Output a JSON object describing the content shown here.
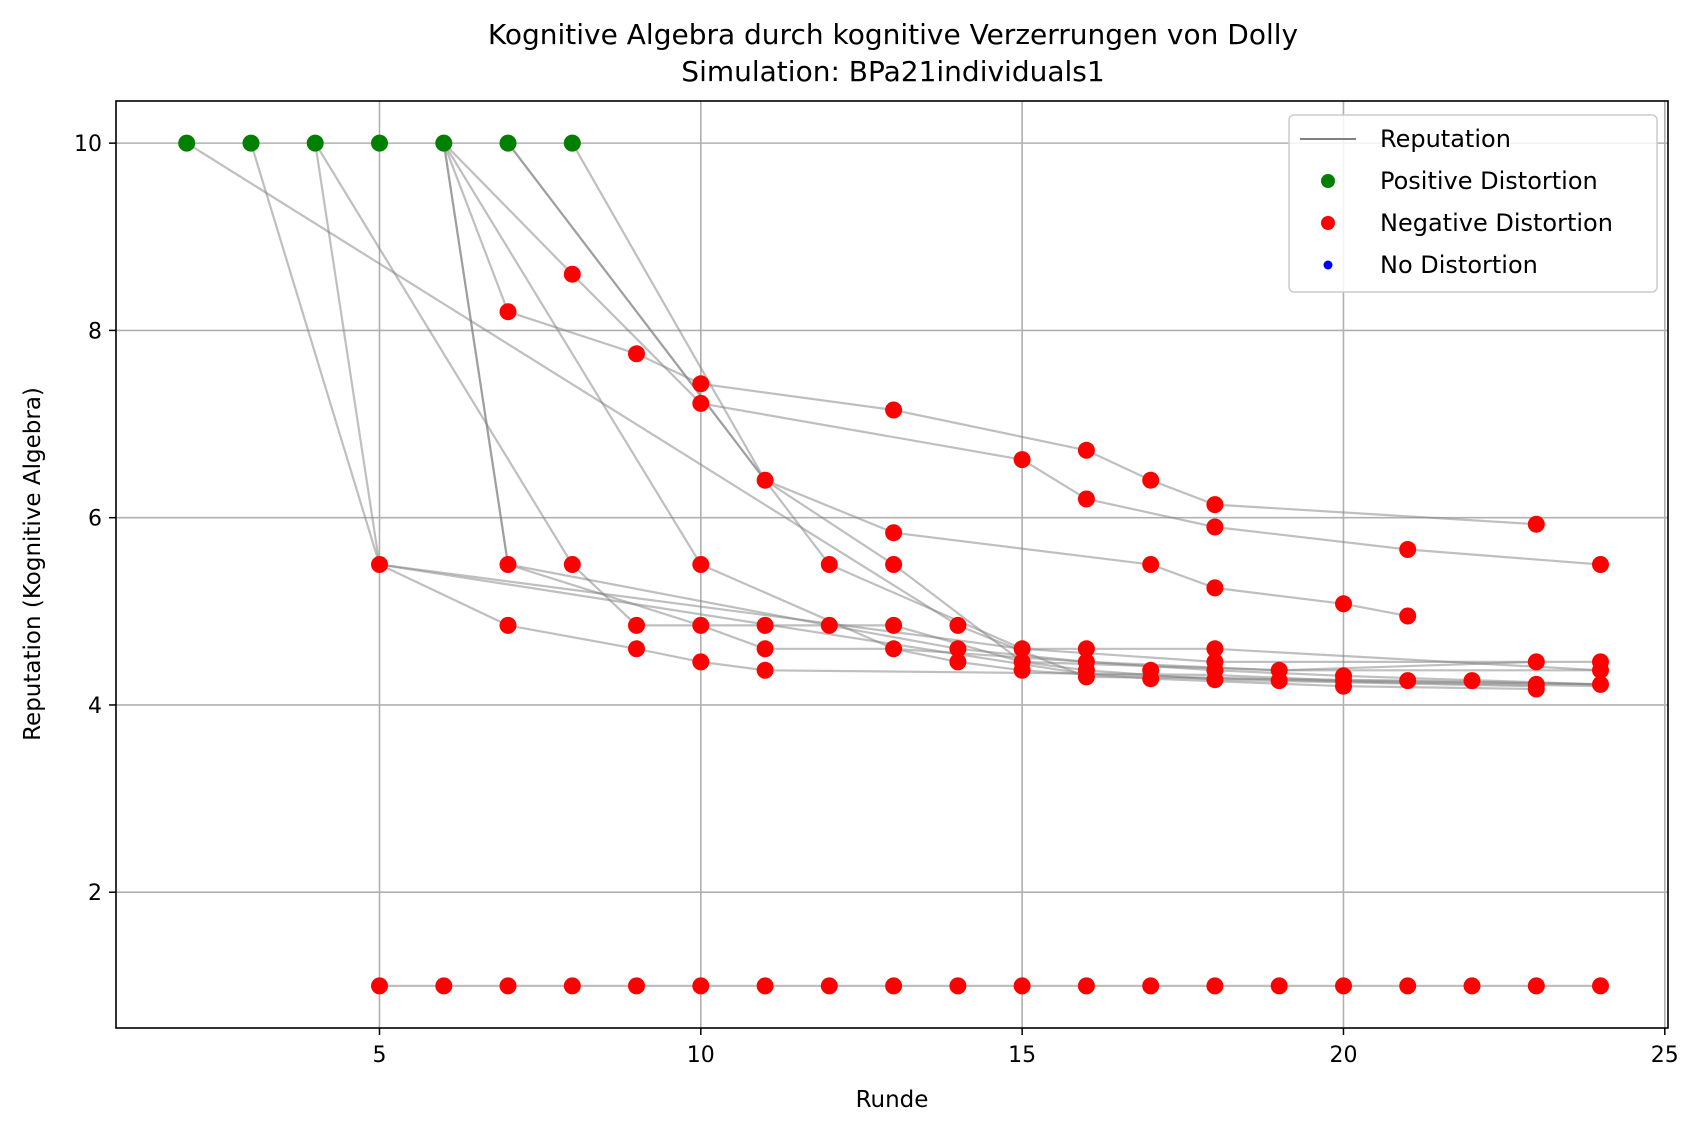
{
  "chart_data": {
    "type": "scatter",
    "title": "Kognitive Algebra durch kognitive Verzerrungen von Dolly",
    "subtitle": "Simulation: BPa21individuals1",
    "xlabel": "Runde",
    "ylabel": "Reputation (Kognitive Algebra)",
    "xlim": [
      0.9,
      25.05
    ],
    "ylim": [
      0.55,
      10.45
    ],
    "xticks": [
      5,
      10,
      15,
      20,
      25
    ],
    "yticks": [
      2,
      4,
      6,
      8,
      10
    ],
    "grid": true,
    "legend_position": "top-right",
    "colors": {
      "reputation_line": "#808080",
      "positive": "#008000",
      "negative": "#ff0000",
      "none": "#0000ff"
    },
    "legend": [
      {
        "label": "Reputation",
        "kind": "line",
        "color": "#808080"
      },
      {
        "label": "Positive Distortion",
        "kind": "marker",
        "color": "#008000"
      },
      {
        "label": "Negative Distortion",
        "kind": "marker",
        "color": "#ff0000"
      },
      {
        "label": "No Distortion",
        "kind": "marker-small",
        "color": "#0000ff"
      }
    ],
    "trajectories": [
      [
        [
          2,
          10
        ],
        [
          14,
          4.85
        ],
        [
          16,
          4.3
        ],
        [
          21,
          4.26
        ],
        [
          24,
          4.22
        ]
      ],
      [
        [
          3,
          10
        ],
        [
          5,
          5.5
        ],
        [
          16,
          4.33
        ],
        [
          20,
          4.25
        ],
        [
          24,
          4.2
        ]
      ],
      [
        [
          4,
          10
        ],
        [
          5,
          5.5
        ],
        [
          7,
          4.85
        ],
        [
          9,
          4.6
        ],
        [
          10,
          4.46
        ],
        [
          11,
          4.37
        ],
        [
          14,
          4.35
        ],
        [
          18,
          4.32
        ],
        [
          20,
          4.26
        ],
        [
          24,
          4.22
        ]
      ],
      [
        [
          4,
          10
        ],
        [
          8,
          5.5
        ],
        [
          9,
          4.85
        ],
        [
          10,
          4.85
        ],
        [
          11,
          4.6
        ],
        [
          13,
          4.6
        ],
        [
          14,
          4.46
        ],
        [
          15,
          4.37
        ],
        [
          17,
          4.28
        ],
        [
          20,
          4.2
        ],
        [
          23,
          4.17
        ]
      ],
      [
        [
          6,
          10
        ],
        [
          7,
          5.5
        ],
        [
          10,
          4.85
        ],
        [
          11,
          4.85
        ],
        [
          12,
          4.85
        ],
        [
          13,
          4.85
        ],
        [
          15,
          4.46
        ],
        [
          16,
          4.37
        ],
        [
          18,
          4.27
        ],
        [
          23,
          4.2
        ]
      ],
      [
        [
          6,
          10
        ],
        [
          7,
          5.5
        ],
        [
          12,
          4.85
        ],
        [
          14,
          4.6
        ],
        [
          16,
          4.46
        ],
        [
          18,
          4.37
        ],
        [
          20,
          4.31
        ],
        [
          24,
          4.22
        ]
      ],
      [
        [
          6,
          10
        ],
        [
          7,
          8.2
        ],
        [
          9,
          7.75
        ],
        [
          10,
          7.43
        ],
        [
          13,
          7.15
        ],
        [
          16,
          6.72
        ],
        [
          17,
          6.4
        ],
        [
          18,
          6.14
        ],
        [
          23,
          5.93
        ]
      ],
      [
        [
          6,
          10
        ],
        [
          8,
          8.6
        ],
        [
          10,
          7.22
        ],
        [
          15,
          6.62
        ],
        [
          16,
          6.2
        ],
        [
          18,
          5.9
        ],
        [
          21,
          5.66
        ],
        [
          24,
          5.5
        ]
      ],
      [
        [
          6,
          10
        ],
        [
          10,
          5.5
        ],
        [
          13,
          4.6
        ],
        [
          16,
          4.46
        ],
        [
          19,
          4.37
        ],
        [
          23,
          4.46
        ]
      ],
      [
        [
          7,
          10
        ],
        [
          11,
          6.4
        ],
        [
          13,
          5.84
        ],
        [
          17,
          5.5
        ],
        [
          18,
          5.25
        ],
        [
          20,
          5.08
        ],
        [
          21,
          4.95
        ]
      ],
      [
        [
          7,
          10
        ],
        [
          12,
          5.5
        ],
        [
          15,
          4.6
        ],
        [
          18,
          4.46
        ],
        [
          24,
          4.46
        ]
      ],
      [
        [
          8,
          10
        ],
        [
          11,
          6.4
        ],
        [
          13,
          5.5
        ],
        [
          15,
          4.46
        ],
        [
          19,
          4.37
        ],
        [
          24,
          4.37
        ]
      ],
      [
        [
          5,
          5.5
        ],
        [
          15,
          4.6
        ],
        [
          18,
          4.6
        ],
        [
          24,
          4.37
        ]
      ],
      [
        [
          5,
          1
        ],
        [
          6,
          1
        ],
        [
          7,
          1
        ],
        [
          8,
          1
        ],
        [
          9,
          1
        ],
        [
          10,
          1
        ],
        [
          11,
          1
        ],
        [
          12,
          1
        ],
        [
          13,
          1
        ],
        [
          14,
          1
        ],
        [
          15,
          1
        ],
        [
          16,
          1
        ],
        [
          17,
          1
        ],
        [
          18,
          1
        ],
        [
          19,
          1
        ],
        [
          20,
          1
        ],
        [
          21,
          1
        ],
        [
          22,
          1
        ],
        [
          23,
          1
        ],
        [
          24,
          1
        ]
      ]
    ],
    "series": [
      {
        "name": "Positive Distortion",
        "points": [
          [
            2,
            10
          ],
          [
            3,
            10
          ],
          [
            4,
            10
          ],
          [
            5,
            10
          ],
          [
            6,
            10
          ],
          [
            7,
            10
          ],
          [
            8,
            10
          ]
        ]
      },
      {
        "name": "Negative Distortion",
        "points": [
          [
            5,
            5.5
          ],
          [
            5,
            1
          ],
          [
            6,
            1
          ],
          [
            7,
            8.2
          ],
          [
            7,
            5.5
          ],
          [
            7,
            4.85
          ],
          [
            7,
            1
          ],
          [
            8,
            8.6
          ],
          [
            8,
            5.5
          ],
          [
            8,
            1
          ],
          [
            9,
            7.75
          ],
          [
            9,
            4.85
          ],
          [
            9,
            4.6
          ],
          [
            9,
            1
          ],
          [
            10,
            7.43
          ],
          [
            10,
            7.22
          ],
          [
            10,
            5.5
          ],
          [
            10,
            4.85
          ],
          [
            10,
            4.46
          ],
          [
            10,
            1
          ],
          [
            11,
            6.4
          ],
          [
            11,
            4.85
          ],
          [
            11,
            4.6
          ],
          [
            11,
            4.37
          ],
          [
            11,
            1
          ],
          [
            12,
            5.5
          ],
          [
            12,
            4.85
          ],
          [
            12,
            1
          ],
          [
            13,
            7.15
          ],
          [
            13,
            5.84
          ],
          [
            13,
            5.5
          ],
          [
            13,
            4.85
          ],
          [
            13,
            4.6
          ],
          [
            13,
            1
          ],
          [
            14,
            4.85
          ],
          [
            14,
            4.6
          ],
          [
            14,
            4.46
          ],
          [
            14,
            1
          ],
          [
            15,
            6.62
          ],
          [
            15,
            4.6
          ],
          [
            15,
            4.46
          ],
          [
            15,
            4.37
          ],
          [
            15,
            1
          ],
          [
            16,
            6.72
          ],
          [
            16,
            6.2
          ],
          [
            16,
            4.6
          ],
          [
            16,
            4.46
          ],
          [
            16,
            4.37
          ],
          [
            16,
            4.3
          ],
          [
            16,
            1
          ],
          [
            17,
            6.4
          ],
          [
            17,
            5.5
          ],
          [
            17,
            4.37
          ],
          [
            17,
            4.28
          ],
          [
            17,
            1
          ],
          [
            18,
            6.14
          ],
          [
            18,
            5.9
          ],
          [
            18,
            5.25
          ],
          [
            18,
            4.6
          ],
          [
            18,
            4.46
          ],
          [
            18,
            4.37
          ],
          [
            18,
            4.27
          ],
          [
            18,
            1
          ],
          [
            19,
            4.37
          ],
          [
            19,
            4.26
          ],
          [
            19,
            1
          ],
          [
            20,
            5.08
          ],
          [
            20,
            4.31
          ],
          [
            20,
            4.26
          ],
          [
            20,
            4.2
          ],
          [
            20,
            1
          ],
          [
            21,
            5.66
          ],
          [
            21,
            4.95
          ],
          [
            21,
            4.26
          ],
          [
            21,
            1
          ],
          [
            22,
            4.26
          ],
          [
            22,
            1
          ],
          [
            23,
            5.93
          ],
          [
            23,
            4.46
          ],
          [
            23,
            4.22
          ],
          [
            23,
            4.17
          ],
          [
            23,
            1
          ],
          [
            24,
            5.5
          ],
          [
            24,
            4.46
          ],
          [
            24,
            4.37
          ],
          [
            24,
            4.22
          ],
          [
            24,
            1
          ]
        ]
      },
      {
        "name": "No Distortion",
        "points": []
      }
    ]
  }
}
